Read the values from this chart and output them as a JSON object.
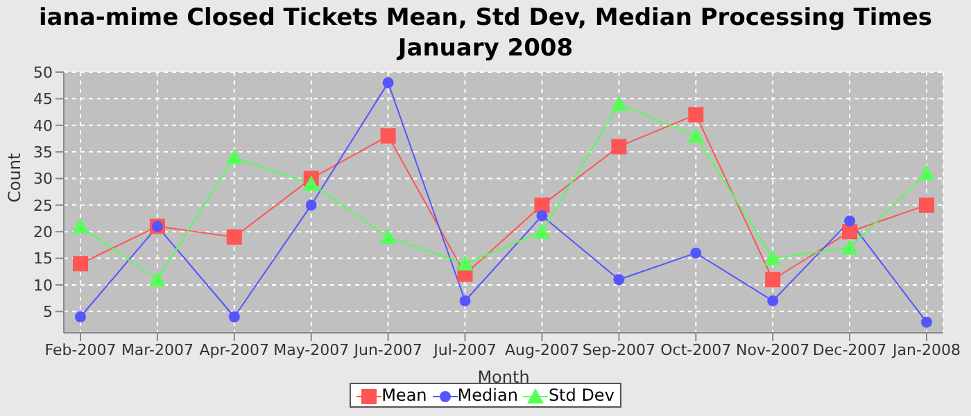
{
  "chart_data": {
    "type": "line",
    "title": "iana-mime Closed Tickets Mean, Std Dev, Median Processing Times\nJanuary 2008",
    "xlabel": "Month",
    "ylabel": "Count",
    "categories": [
      "Feb-2007",
      "Mar-2007",
      "Apr-2007",
      "May-2007",
      "Jun-2007",
      "Jul-2007",
      "Aug-2007",
      "Sep-2007",
      "Oct-2007",
      "Nov-2007",
      "Dec-2007",
      "Jan-2008"
    ],
    "series": [
      {
        "name": "Mean",
        "color": "#ff5555",
        "marker": "square",
        "values": [
          14,
          21,
          19,
          30,
          38,
          12,
          25,
          36,
          42,
          11,
          20,
          25
        ]
      },
      {
        "name": "Median",
        "color": "#5555ff",
        "marker": "circle",
        "values": [
          4,
          21,
          4,
          25,
          48,
          7,
          23,
          11,
          16,
          7,
          22,
          3
        ]
      },
      {
        "name": "Std Dev",
        "color": "#55ff55",
        "marker": "triangle",
        "values": [
          21,
          11,
          34,
          29,
          19,
          14,
          20,
          44,
          38,
          15,
          17,
          31
        ]
      }
    ],
    "ylim": [
      1,
      50
    ],
    "yticks": [
      5,
      10,
      15,
      20,
      25,
      30,
      35,
      40,
      45,
      50
    ],
    "grid": true,
    "legend": "bottom"
  }
}
